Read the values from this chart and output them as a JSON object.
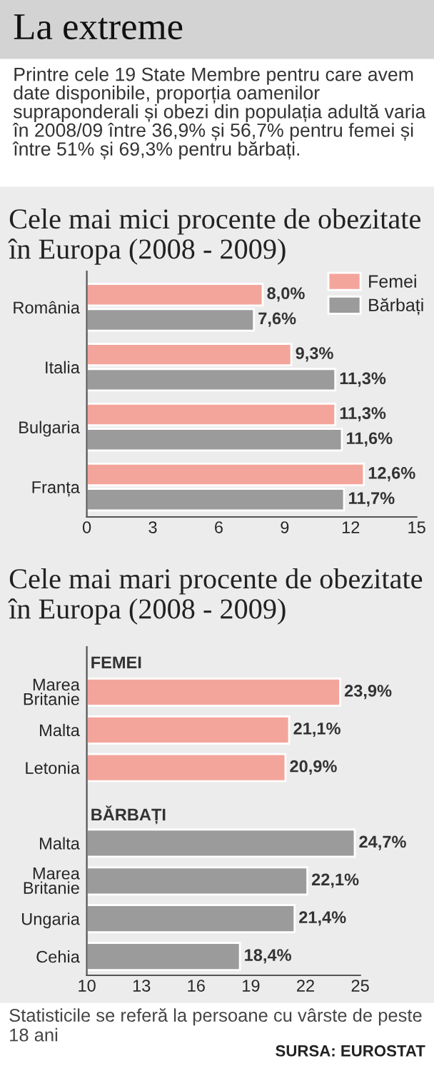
{
  "chart_data": [
    {
      "type": "bar",
      "orientation": "horizontal",
      "title": "Cele mai mici procente de obezitate în Europa (2008 - 2009)",
      "annotations": [
        "La extreme",
        "Printre cele 19 State Membre pentru care avem date disponibile, proporția oamenilor supraponderali și obezi din populația adultă varia în 2008/09 între 36,9% și 56,7% pentru femei și între 51% și 69,3% pentru bărbați."
      ],
      "categories": [
        "România",
        "Italia",
        "Bulgaria",
        "Franța"
      ],
      "series": [
        {
          "name": "Femei",
          "color": "#f4a59b",
          "values": [
            8.0,
            9.3,
            11.3,
            12.6
          ],
          "value_labels": [
            "8,0%",
            "9,3%",
            "11,3%",
            "12,6%"
          ]
        },
        {
          "name": "Bărbați",
          "color": "#9b9b9b",
          "values": [
            7.6,
            11.3,
            11.6,
            11.7
          ],
          "value_labels": [
            "7,6%",
            "11,3%",
            "11,6%",
            "11,7%"
          ]
        }
      ],
      "xlim": [
        0,
        15
      ],
      "xticks": [
        0,
        3,
        6,
        9,
        12,
        15
      ],
      "legend": "top right",
      "grid": false
    },
    {
      "type": "bar",
      "orientation": "horizontal",
      "title": "Cele mai mari procente de obezitate în Europa (2008 - 2009)",
      "annotations": [
        "Statisticile se referă la persoane cu vârste de peste 18 ani",
        "SURSA: EUROSTAT"
      ],
      "categories": [
        "Marea Britanie",
        "Malta",
        "Letonia",
        null,
        "Malta",
        "Marea Britanie",
        "Ungaria",
        "Cehia"
      ],
      "series": [
        {
          "name": "FEMEI",
          "color": "#f4a59b",
          "values": [
            23.9,
            21.1,
            20.9,
            null,
            null,
            null,
            null,
            null
          ],
          "value_labels": [
            "23,9%",
            "21,1%",
            "20,9%",
            null,
            null,
            null,
            null,
            null
          ]
        },
        {
          "name": "BĂRBAȚI",
          "color": "#9b9b9b",
          "values": [
            null,
            null,
            null,
            null,
            24.7,
            22.1,
            21.4,
            18.4
          ],
          "value_labels": [
            null,
            null,
            null,
            null,
            "24,7%",
            "22,1%",
            "21,4%",
            "18,4%"
          ]
        }
      ],
      "xlim": [
        10,
        25
      ],
      "xticks": [
        10,
        13,
        16,
        19,
        22,
        25
      ],
      "legend": false,
      "grid": false
    }
  ]
}
